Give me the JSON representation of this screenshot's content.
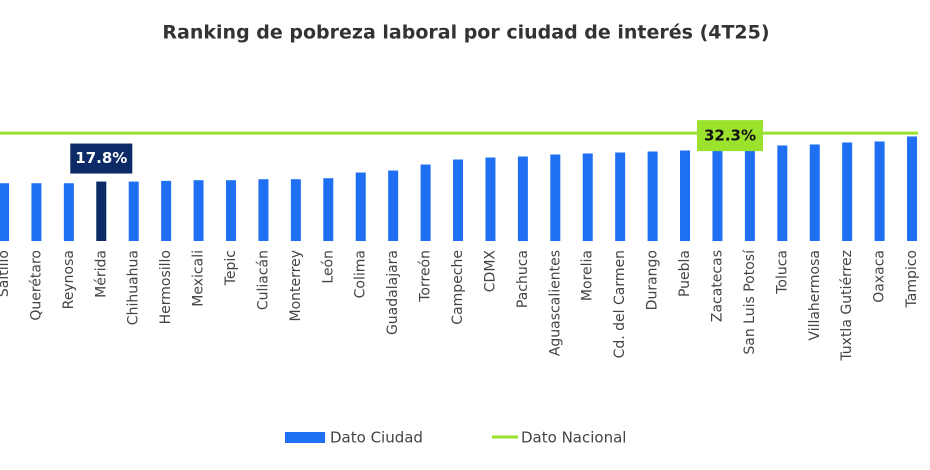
{
  "chart_data": {
    "type": "bar",
    "title": "Ranking de pobreza laboral por ciudad de interés (4T25)",
    "categories": [
      "Saltillo",
      "Querétaro",
      "Reynosa",
      "Mérida",
      "Chihuahua",
      "Hermosillo",
      "Mexicali",
      "Tepic",
      "Culiacán",
      "Monterrey",
      "León",
      "Colima",
      "Guadalajara",
      "Torreón",
      "Campeche",
      "CDMX",
      "Pachuca",
      "Aguascalientes",
      "Morelia",
      "Cd. del Carmen",
      "Durango",
      "Puebla",
      "Zacatecas",
      "San Luis Potosí",
      "Toluca",
      "Villahermosa",
      "Tuxtla Gutiérrez",
      "Oaxaca",
      "Tampico"
    ],
    "series": [
      {
        "name": "Dato Ciudad",
        "color": "#1f6ff2",
        "colors": [
          "#1f6ff2",
          "#1f6ff2",
          "#1f6ff2",
          "#0c2a66",
          "#1f6ff2",
          "#1f6ff2",
          "#1f6ff2",
          "#1f6ff2",
          "#1f6ff2",
          "#1f6ff2",
          "#1f6ff2",
          "#1f6ff2",
          "#1f6ff2",
          "#1f6ff2",
          "#1f6ff2",
          "#1f6ff2",
          "#1f6ff2",
          "#1f6ff2",
          "#1f6ff2",
          "#1f6ff2",
          "#1f6ff2",
          "#1f6ff2",
          "#1f6ff2",
          "#1f6ff2",
          "#1f6ff2",
          "#1f6ff2",
          "#1f6ff2",
          "#1f6ff2",
          "#1f6ff2"
        ],
        "values": [
          17.3,
          17.3,
          17.3,
          17.8,
          17.8,
          18.0,
          18.2,
          18.2,
          18.5,
          18.5,
          18.8,
          20.5,
          21.1,
          22.9,
          24.4,
          25.0,
          25.3,
          25.9,
          26.2,
          26.5,
          26.8,
          27.1,
          27.7,
          28.0,
          28.6,
          28.9,
          29.5,
          29.8,
          31.3
        ],
        "value_labels": [
          null,
          null,
          null,
          "17.8%",
          null,
          null,
          null,
          null,
          null,
          null,
          null,
          null,
          null,
          null,
          null,
          null,
          null,
          null,
          null,
          null,
          null,
          null,
          null,
          null,
          null,
          null,
          null,
          null,
          null
        ],
        "label_color": "#0c2a66"
      },
      {
        "name": "Dato Nacional",
        "type": "line",
        "color": "#9be22d",
        "value": 32.3,
        "value_label": "32.3%"
      }
    ]
  }
}
